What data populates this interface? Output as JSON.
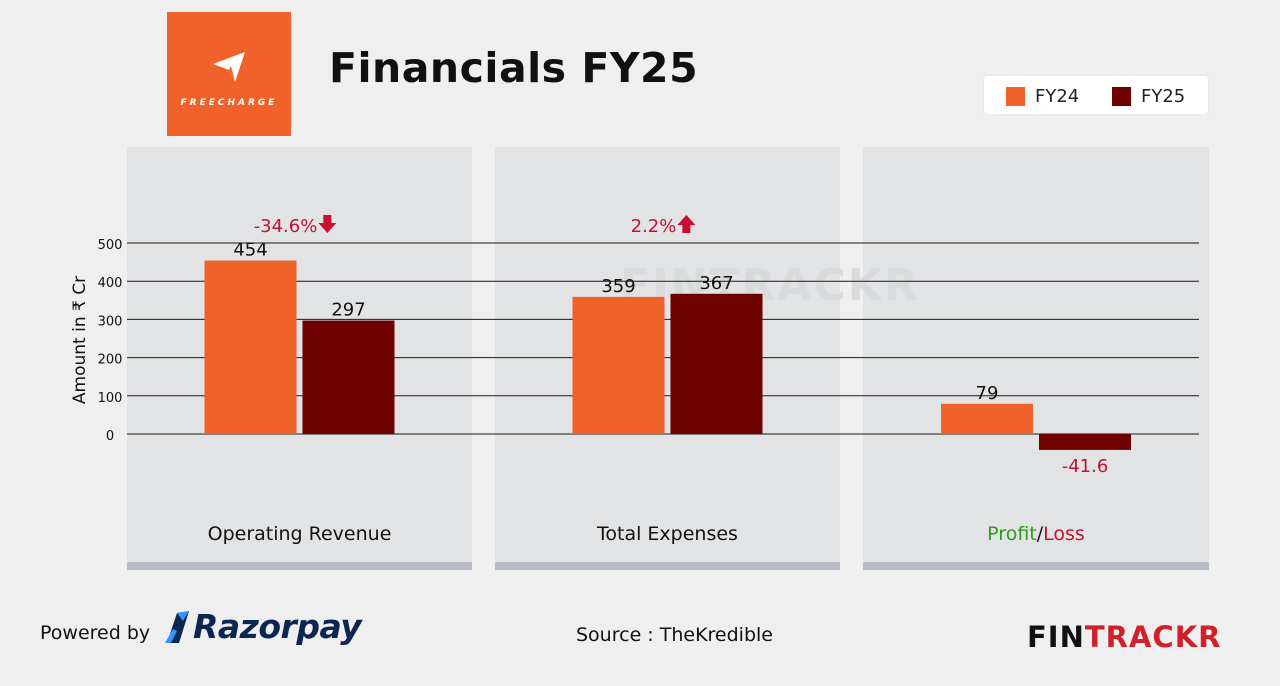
{
  "header": {
    "brand_logo_text": "FREECHARGE",
    "title": "Financials FY25"
  },
  "colors": {
    "fy24": "#f0622a",
    "fy25": "#6e0000",
    "panel": "#e2e3e4",
    "panel_base": "#b8bcc4",
    "negative_text": "#c8102e",
    "profit_green": "#2e9a1e"
  },
  "legend": [
    {
      "label": "FY24",
      "color": "#f0622a"
    },
    {
      "label": "FY25",
      "color": "#6e0000"
    }
  ],
  "chart_data": {
    "type": "bar",
    "ylabel": "Amount in ₹ Cr",
    "yticks": [
      0,
      100,
      200,
      300,
      400,
      500
    ],
    "ylim": [
      0,
      500
    ],
    "grid": true,
    "legend_position": "top-right",
    "series_names": [
      "FY24",
      "FY25"
    ],
    "groups": [
      {
        "category": "Operating Revenue",
        "values": [
          454,
          297
        ],
        "labels": [
          "454",
          "297"
        ],
        "change": "-34.6%",
        "direction": "down"
      },
      {
        "category": "Total Expenses",
        "values": [
          359,
          367
        ],
        "labels": [
          "359",
          "367"
        ],
        "change": "2.2%",
        "direction": "up"
      },
      {
        "category_parts": [
          "Profit",
          "/",
          "Loss"
        ],
        "values": [
          79,
          -41.6
        ],
        "labels": [
          "79",
          "-41.6"
        ]
      }
    ]
  },
  "watermark": "FINTRACKR",
  "footer": {
    "powered_by": "Powered by",
    "partner": "Razorpay",
    "source": "Source : TheKredible",
    "brand_part1": "FIN",
    "brand_part2": "TRACKR"
  }
}
